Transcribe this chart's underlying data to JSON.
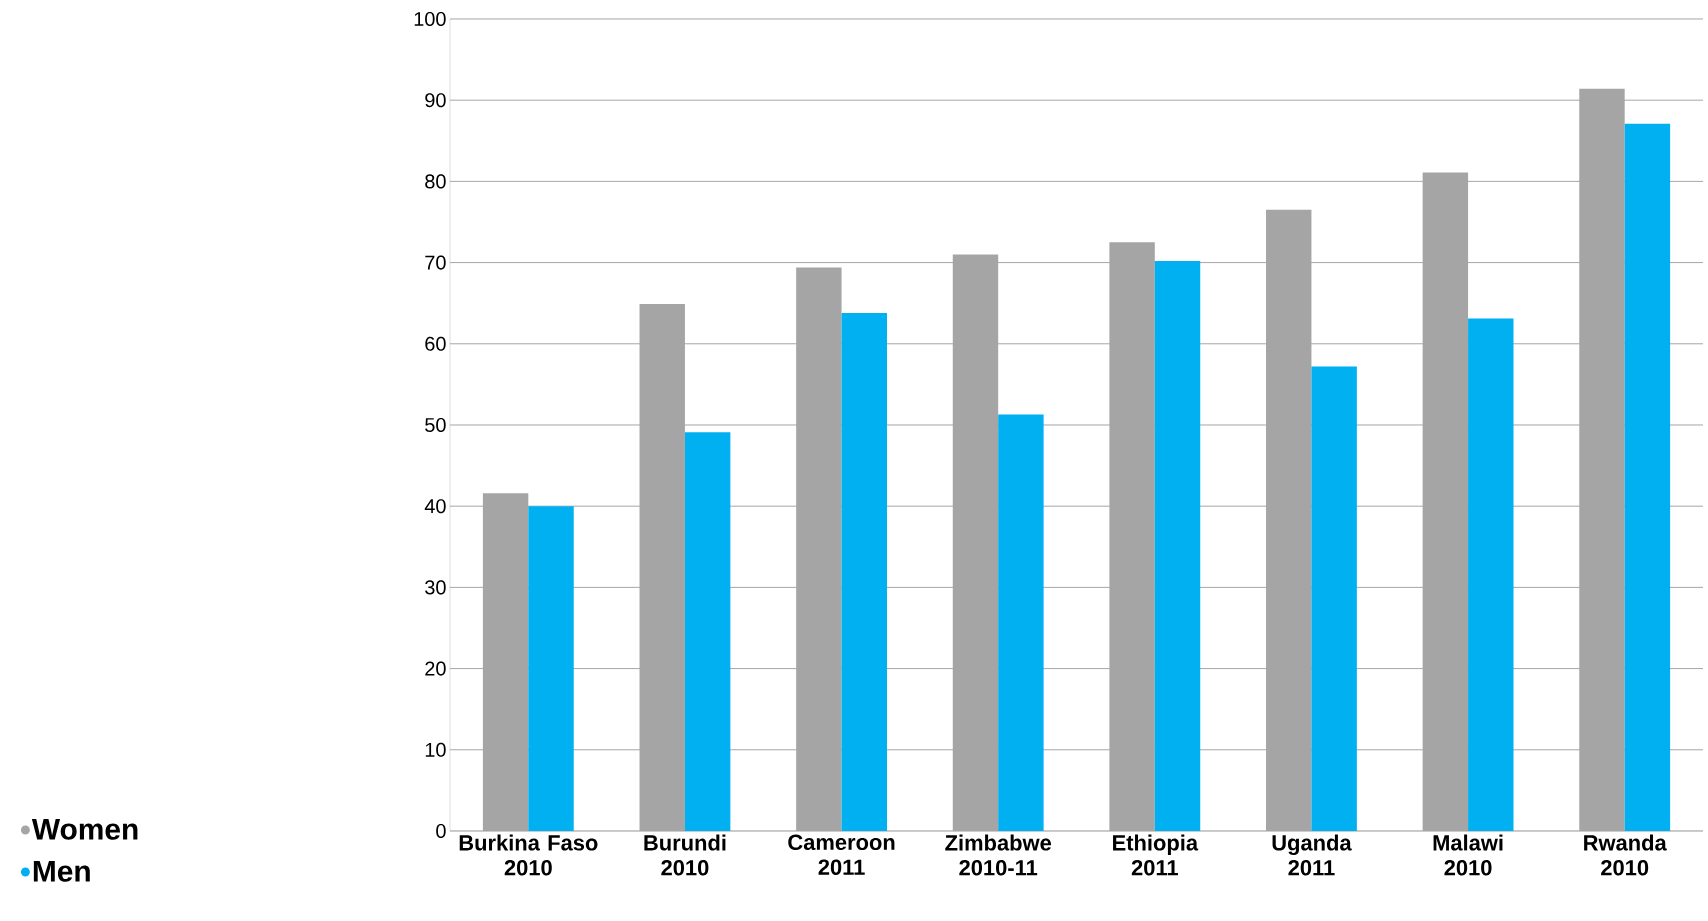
{
  "chart_data": {
    "type": "bar",
    "categories": [
      "Burkina Faso\n2010",
      "Burundi\n2010",
      "Cameroon\n2011",
      "Zimbabwe\n2010-11",
      "Ethiopia\n2011",
      "Uganda\n2011",
      "Malawi\n2010",
      "Rwanda\n2010"
    ],
    "series": [
      {
        "name": "Women",
        "color": "#a5a5a5",
        "values": [
          41.6,
          64.9,
          69.4,
          71.0,
          72.5,
          76.5,
          81.1,
          91.4
        ]
      },
      {
        "name": "Men",
        "color": "#00b0f0",
        "values": [
          40.0,
          49.1,
          63.8,
          51.3,
          70.2,
          57.2,
          63.1,
          87.1
        ]
      }
    ],
    "ylim": [
      0,
      100
    ],
    "yticks": [
      0,
      10,
      20,
      30,
      40,
      50,
      60,
      70,
      80,
      90,
      100
    ],
    "grid": "y",
    "legend": "bottom left"
  }
}
